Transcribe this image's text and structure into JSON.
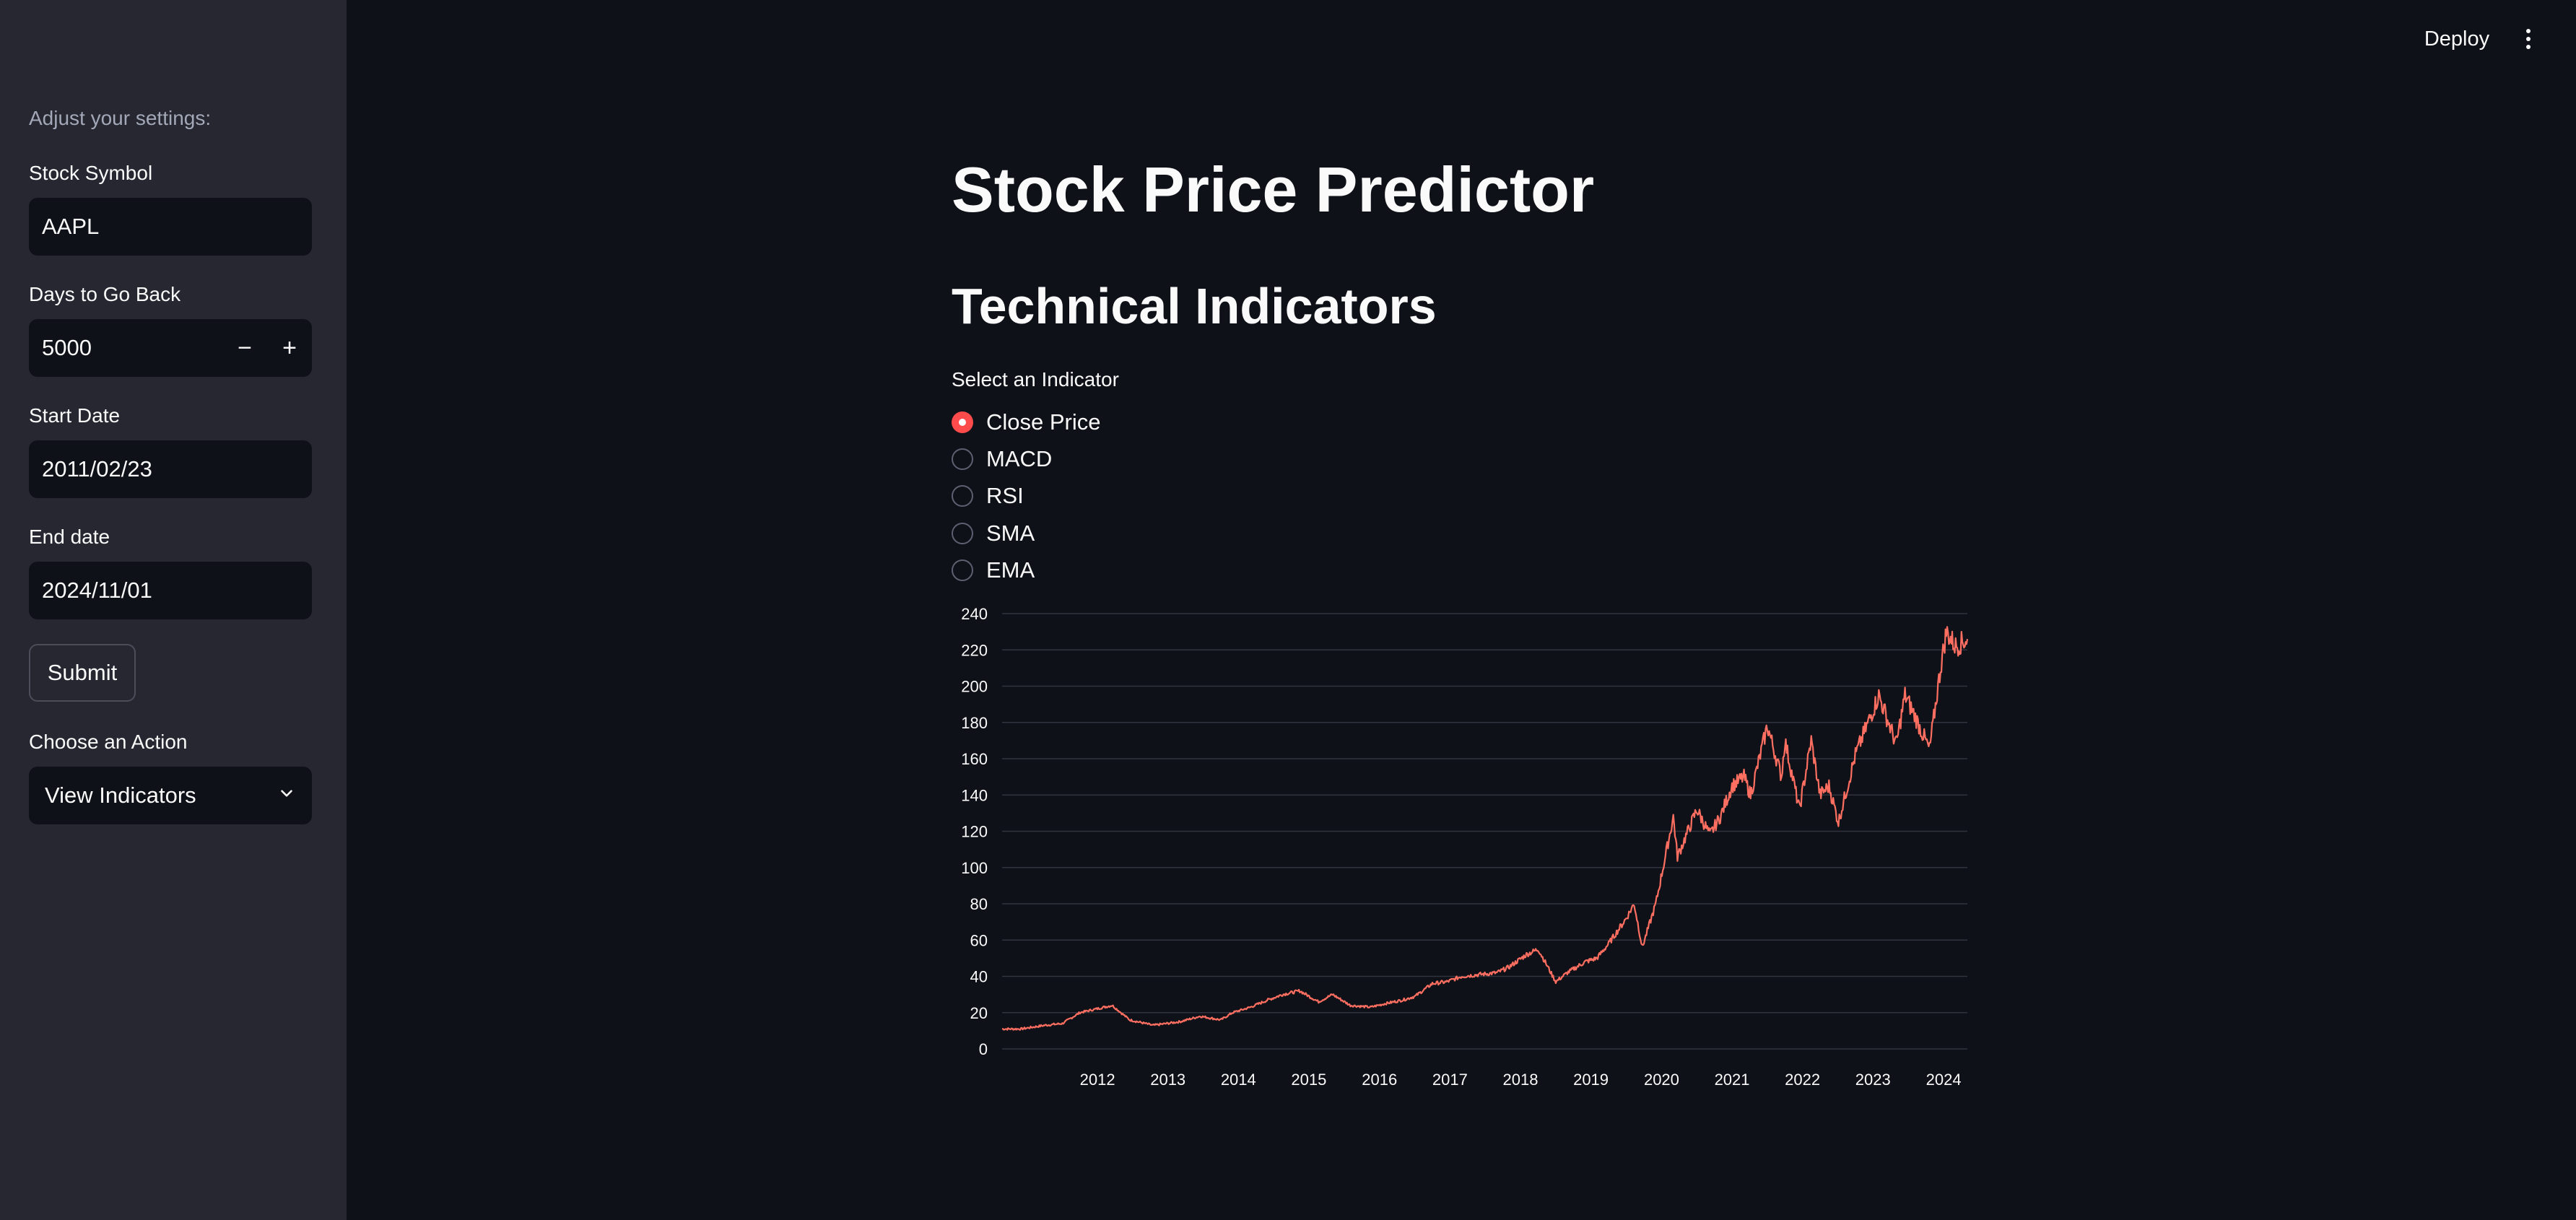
{
  "sidebar": {
    "intro": "Adjust your settings:",
    "stock_symbol": {
      "label": "Stock Symbol",
      "value": "AAPL"
    },
    "days_back": {
      "label": "Days to Go Back",
      "value": "5000",
      "minus": "−",
      "plus": "+"
    },
    "start_date": {
      "label": "Start Date",
      "value": "2011/02/23"
    },
    "end_date": {
      "label": "End date",
      "value": "2024/11/01"
    },
    "submit_label": "Submit",
    "action": {
      "label": "Choose an Action",
      "value": "View Indicators"
    }
  },
  "header": {
    "deploy_label": "Deploy"
  },
  "main": {
    "title": "Stock Price Predictor",
    "subtitle": "Technical Indicators",
    "radio_label": "Select an Indicator",
    "options": [
      "Close Price",
      "MACD",
      "RSI",
      "SMA",
      "EMA"
    ],
    "selected_option": "Close Price"
  },
  "colors": {
    "accent": "#ff4b4b",
    "line": "#ff6f61",
    "background": "#0e1117",
    "sidebar": "#262730"
  },
  "chart_data": {
    "type": "line",
    "title": "",
    "xlabel": "",
    "ylabel": "",
    "ylim": [
      0,
      240
    ],
    "xlim": [
      "2011-02-23",
      "2024-11-01"
    ],
    "grid": true,
    "y_ticks": [
      0,
      20,
      40,
      60,
      80,
      100,
      120,
      140,
      160,
      180,
      200,
      220,
      240
    ],
    "x_ticks": [
      "2012",
      "2013",
      "2014",
      "2015",
      "2016",
      "2017",
      "2018",
      "2019",
      "2020",
      "2021",
      "2022",
      "2023",
      "2024"
    ],
    "series": [
      {
        "color": "#ff6f61",
        "x": [
          "2011-02-23",
          "2011-06-01",
          "2011-10-01",
          "2012-01-01",
          "2012-04-01",
          "2012-09-15",
          "2012-12-15",
          "2013-04-15",
          "2013-09-01",
          "2013-12-15",
          "2014-04-01",
          "2014-06-01",
          "2014-09-01",
          "2014-12-01",
          "2015-02-15",
          "2015-05-15",
          "2015-08-20",
          "2015-11-01",
          "2016-02-01",
          "2016-05-15",
          "2016-08-01",
          "2016-11-01",
          "2017-01-01",
          "2017-04-01",
          "2017-06-15",
          "2017-09-01",
          "2017-12-01",
          "2018-03-01",
          "2018-05-01",
          "2018-08-01",
          "2018-10-01",
          "2018-12-31",
          "2019-03-01",
          "2019-06-01",
          "2019-08-01",
          "2019-10-01",
          "2019-12-31",
          "2020-02-10",
          "2020-03-23",
          "2020-06-01",
          "2020-08-31",
          "2020-09-21",
          "2020-12-31",
          "2021-03-08",
          "2021-05-01",
          "2021-07-01",
          "2021-09-01",
          "2021-10-05",
          "2021-12-31",
          "2022-03-14",
          "2022-04-01",
          "2022-06-15",
          "2022-08-15",
          "2022-09-30",
          "2022-11-15",
          "2023-01-03",
          "2023-04-01",
          "2023-07-31",
          "2023-10-30",
          "2023-12-14",
          "2024-02-01",
          "2024-04-19",
          "2024-06-15",
          "2024-07-15",
          "2024-09-01",
          "2024-11-01"
        ],
        "y": [
          11,
          11,
          13,
          14,
          20,
          24,
          16,
          13,
          15,
          18,
          16,
          20,
          23,
          27,
          30,
          32,
          26,
          30,
          24,
          23,
          25,
          27,
          29,
          36,
          37,
          40,
          41,
          42,
          45,
          52,
          55,
          37,
          42,
          48,
          50,
          58,
          72,
          80,
          56,
          80,
          128,
          106,
          132,
          118,
          128,
          145,
          150,
          140,
          178,
          150,
          170,
          132,
          170,
          140,
          145,
          125,
          162,
          195,
          168,
          195,
          184,
          165,
          210,
          230,
          222,
          226
        ]
      }
    ]
  }
}
